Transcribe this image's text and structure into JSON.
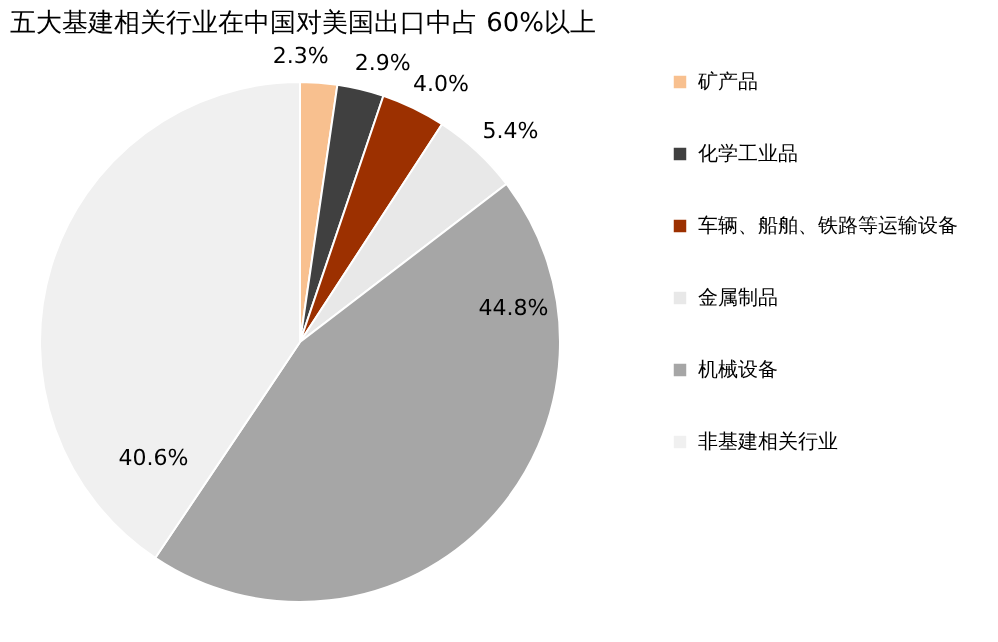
{
  "chart_data": {
    "type": "pie",
    "title": "五大基建相关行业在中国对美国出口中占 60%以上",
    "categories": [
      "矿产品",
      "化学工业品",
      "车辆、船舶、铁路等运输设备",
      "金属制品",
      "机械设备",
      "非基建相关行业"
    ],
    "values": [
      2.3,
      2.9,
      4.0,
      5.4,
      44.8,
      40.6
    ],
    "colors": [
      "#f8c08f",
      "#404040",
      "#9c3000",
      "#e8e8e8",
      "#a6a6a6",
      "#f0f0f0"
    ],
    "value_labels": [
      "2.3%",
      "2.9%",
      "4.0%",
      "5.4%",
      "44.8%",
      "40.6%"
    ],
    "legend": "right"
  }
}
